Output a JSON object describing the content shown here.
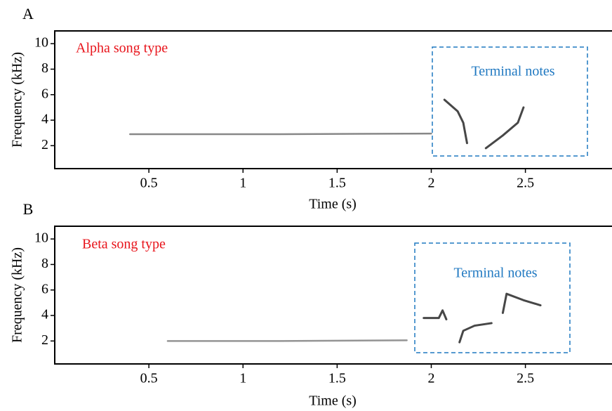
{
  "chart_data": [
    {
      "type": "line",
      "panel": "A",
      "title": "Alpha song type",
      "annotation": "Terminal notes",
      "xlabel": "Time (s)",
      "ylabel": "Frequency (kHz)",
      "xlim": [
        0,
        2.96
      ],
      "xticks": [
        0.5,
        1.0,
        1.5,
        2.0,
        2.5
      ],
      "ylim": [
        0.2,
        11
      ],
      "yticks": [
        2,
        4,
        6,
        8,
        10
      ],
      "title_color": "#e8141b",
      "annotation_color": "#1f78c1",
      "series": [
        {
          "color": "#555555",
          "x": [
            0.4,
            1.2,
            2.0
          ],
          "y": [
            2.9,
            2.9,
            2.95
          ]
        },
        {
          "color": "#333333",
          "x": [
            2.07,
            2.14,
            2.17,
            2.19
          ],
          "y": [
            5.6,
            4.7,
            3.8,
            2.2
          ]
        },
        {
          "color": "#333333",
          "x": [
            2.29,
            2.38,
            2.46,
            2.49
          ],
          "y": [
            1.8,
            2.8,
            3.8,
            5.0
          ]
        }
      ]
    },
    {
      "type": "line",
      "panel": "B",
      "title": "Beta song type",
      "annotation": "Terminal notes",
      "xlabel": "Time (s)",
      "ylabel": "Frequency (kHz)",
      "xlim": [
        0,
        2.96
      ],
      "xticks": [
        0.5,
        1.0,
        1.5,
        2.0,
        2.5
      ],
      "ylim": [
        0.2,
        11
      ],
      "yticks": [
        2,
        4,
        6,
        8,
        10
      ],
      "title_color": "#e8141b",
      "annotation_color": "#1f78c1",
      "series": [
        {
          "color": "#666666",
          "x": [
            0.6,
            1.2,
            1.87
          ],
          "y": [
            2.0,
            2.0,
            2.05
          ]
        },
        {
          "color": "#333333",
          "x": [
            1.96,
            2.04,
            2.06,
            2.08
          ],
          "y": [
            3.8,
            3.8,
            4.4,
            3.7
          ]
        },
        {
          "color": "#333333",
          "x": [
            2.15,
            2.17,
            2.23,
            2.32
          ],
          "y": [
            1.9,
            2.8,
            3.2,
            3.4
          ]
        },
        {
          "color": "#333333",
          "x": [
            2.38,
            2.4,
            2.49,
            2.58
          ],
          "y": [
            4.2,
            5.7,
            5.2,
            4.8
          ]
        }
      ]
    }
  ]
}
